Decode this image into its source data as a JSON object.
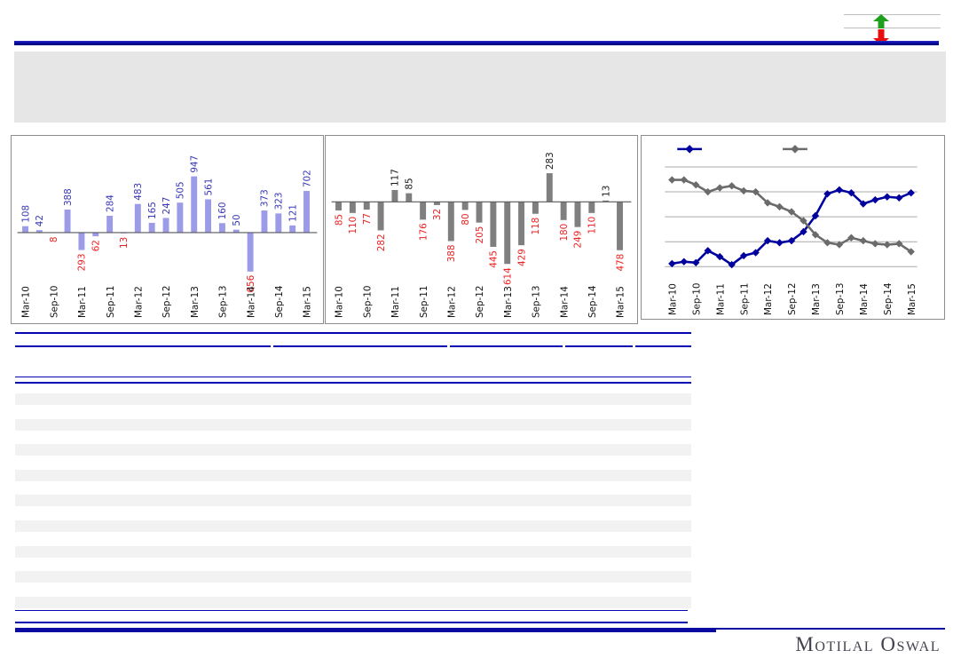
{
  "footer": {
    "logo": "Motilal Oswal"
  },
  "updown_widget": {
    "up_arrow_color": "#1EA01E",
    "down_arrow_color": "#E80E0E"
  },
  "theme": {
    "rule_navy": "#0505B2",
    "header_box_gray": "#E6E6E6",
    "row_stripe_gray": "#F2F2F2",
    "chart_border_gray": "#8C8C8C"
  },
  "chart_data": [
    {
      "type": "bar",
      "title": "",
      "categories": [
        "Mar-10",
        "Jun-10",
        "Sep-10",
        "Dec-10",
        "Mar-11",
        "Jun-11",
        "Sep-11",
        "Dec-11",
        "Mar-12",
        "Jun-12",
        "Sep-12",
        "Dec-12",
        "Mar-13",
        "Jun-13",
        "Sep-13",
        "Dec-13",
        "Mar-14",
        "Jun-14",
        "Sep-14",
        "Dec-14",
        "Mar-15"
      ],
      "tick_labels": [
        "Mar-10",
        "Sep-10",
        "Mar-11",
        "Sep-11",
        "Mar-12",
        "Sep-12",
        "Mar-13",
        "Sep-13",
        "Mar-14",
        "Sep-14",
        "Mar-15"
      ],
      "values": [
        108,
        42,
        -8,
        388,
        -293,
        -62,
        284,
        -13,
        483,
        165,
        247,
        505,
        947,
        561,
        160,
        50,
        -656,
        373,
        323,
        121,
        702
      ],
      "bar_color": "#9B9BE8",
      "positive_label_color": "#3939B8",
      "negative_label_color": "#EE2222",
      "axis_color": "#595959",
      "grid": false,
      "legend": "none"
    },
    {
      "type": "bar",
      "title": "",
      "categories": [
        "Mar-10",
        "Jun-10",
        "Sep-10",
        "Dec-10",
        "Mar-11",
        "Jun-11",
        "Sep-11",
        "Dec-11",
        "Mar-12",
        "Jun-12",
        "Sep-12",
        "Dec-12",
        "Mar-13",
        "Jun-13",
        "Sep-13",
        "Dec-13",
        "Mar-14",
        "Jun-14",
        "Sep-14",
        "Dec-14",
        "Mar-15"
      ],
      "tick_labels": [
        "Mar-10",
        "Sep-10",
        "Mar-11",
        "Sep-11",
        "Mar-12",
        "Sep-12",
        "Mar-13",
        "Sep-13",
        "Mar-14",
        "Sep-14",
        "Mar-15"
      ],
      "values": [
        -85,
        -110,
        -77,
        -282,
        117,
        85,
        -176,
        -32,
        -388,
        -80,
        -205,
        -445,
        -614,
        -429,
        -118,
        283,
        -180,
        -249,
        -110,
        13,
        -478
      ],
      "bar_color": "#7F7F7F",
      "positive_label_color": "#1A1A1A",
      "negative_label_color": "#EE2222",
      "axis_color": "#595959",
      "grid": false,
      "legend": "none"
    },
    {
      "type": "line",
      "title": "",
      "categories": [
        "Mar-10",
        "Jun-10",
        "Sep-10",
        "Dec-10",
        "Mar-11",
        "Jun-11",
        "Sep-11",
        "Dec-11",
        "Mar-12",
        "Jun-12",
        "Sep-12",
        "Dec-12",
        "Mar-13",
        "Jun-13",
        "Sep-13",
        "Dec-13",
        "Mar-14",
        "Jun-14",
        "Sep-14",
        "Dec-14",
        "Mar-15"
      ],
      "tick_labels": [
        "Mar-10",
        "Sep-10",
        "Mar-11",
        "Sep-11",
        "Mar-12",
        "Sep-12",
        "Mar-13",
        "Sep-13",
        "Mar-14",
        "Sep-14",
        "Mar-15"
      ],
      "series": [
        {
          "name": "",
          "color": "#00009E",
          "values": [
            3,
            5,
            4,
            16,
            10,
            2,
            11,
            14,
            26,
            24,
            26,
            35,
            51,
            73,
            77,
            74,
            63,
            67,
            70,
            69,
            74
          ]
        },
        {
          "name": "",
          "color": "#6B6B6B",
          "values": [
            87,
            87,
            82,
            75,
            79,
            81,
            76,
            75,
            64,
            60,
            55,
            46,
            32,
            24,
            22,
            29,
            26,
            23,
            22,
            23,
            15
          ]
        }
      ],
      "ylim": [
        0,
        100
      ],
      "gridline_count": 5,
      "grid_color": "#A9A9A9",
      "legend_position": "top",
      "marker": "diamond"
    }
  ]
}
